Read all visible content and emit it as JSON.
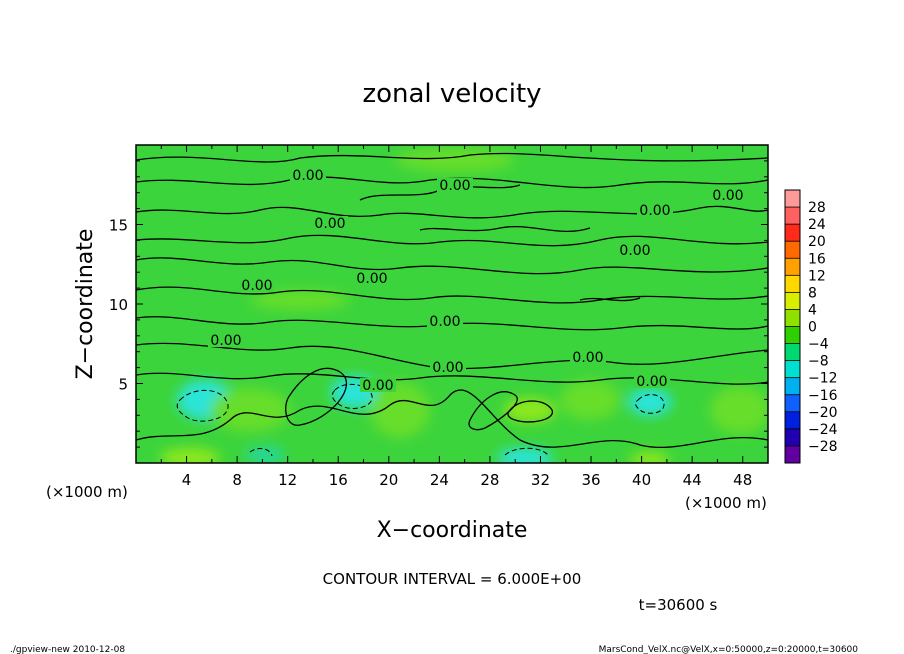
{
  "chart_data": {
    "type": "heatmap",
    "title": "zonal velocity",
    "xlabel": "X−coordinate",
    "ylabel": "Z−coordinate",
    "x_unit_label": "(×1000 m)",
    "x_unit_label_right": "(×1000 m)",
    "xlim": [
      0,
      50
    ],
    "ylim": [
      0,
      20
    ],
    "x_ticks": [
      4,
      8,
      12,
      16,
      20,
      24,
      28,
      32,
      36,
      40,
      44,
      48
    ],
    "y_ticks": [
      5,
      10,
      15
    ],
    "contour_interval_text": "CONTOUR INTERVAL = 6.000E+00",
    "time_text": "t=30600 s",
    "contour_labels": [
      "0.00",
      "0.00",
      "0.00",
      "0.00",
      "0.00",
      "0.00",
      "0.00",
      "0.00",
      "0.00",
      "0.00",
      "0.00",
      "0.00",
      "0.00",
      "0.00"
    ],
    "colorbar": {
      "levels": [
        "28",
        "24",
        "20",
        "16",
        "12",
        "8",
        "4",
        "0",
        "−4",
        "−8",
        "−12",
        "−16",
        "−20",
        "−24",
        "−28"
      ],
      "colors": [
        "#ff9a9a",
        "#ff6060",
        "#ff2a1a",
        "#ff6a00",
        "#ffa000",
        "#ffd800",
        "#d8f000",
        "#90e000",
        "#30d000",
        "#00d870",
        "#00e0d0",
        "#00b0f0",
        "#1060ff",
        "#0020e0",
        "#2000b0",
        "#6000a0"
      ],
      "field_colors": {
        "background": "#3cd43c",
        "positive_patch": "#8ee81e",
        "weak_positive_patch": "#66de2c",
        "negative_patch": "#22d8a0",
        "strong_negative_patch": "#2ae4d8"
      }
    }
  },
  "footer": {
    "left": "./gpview-new   2010-12-08",
    "right": "MarsCond_VelX.nc@VelX,x=0:50000,z=0:20000,t=30600"
  }
}
